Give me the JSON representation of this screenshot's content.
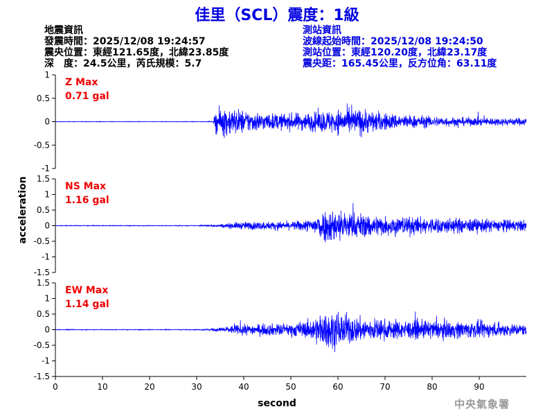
{
  "title": "佳里（SCL）震度：1級",
  "earthquake_info": {
    "heading": "地震資訊",
    "origin_time": "發震時間：2025/12/08 19:24:57",
    "epicenter": "震央位置：東經121.65度，北緯23.85度",
    "depth_magnitude": "深　度：24.5公里，芮氏規模：5.7"
  },
  "station_info": {
    "heading": "測站資訊",
    "wave_start": "波線起始時間：2025/12/08 19:24:50",
    "station_location": "測站位置：東經120.20度，北緯23.17度",
    "distance_azimuth": "震央距：165.45公里，反方位角：63.11度"
  },
  "agency": "中央氣象署",
  "colors": {
    "title": "#0000e0",
    "trace": "#0000ff",
    "peak_label": "#ee0000",
    "station_text": "#0000e0",
    "agency": "#999999"
  },
  "chart_data": {
    "type": "line",
    "xlabel": "second",
    "ylabel": "acceleration",
    "xlim": [
      0,
      100
    ],
    "xticks": [
      0,
      10,
      20,
      30,
      40,
      50,
      60,
      70,
      80,
      90
    ],
    "panels": [
      {
        "component": "Z",
        "max_label": "Z Max",
        "max_value": "0.71 gal",
        "ylim": [
          -1,
          1
        ],
        "yticks": [
          1,
          0.5,
          0,
          -0.5,
          -1
        ],
        "trace_envelope": {
          "t": [
            0,
            33.5,
            34,
            36,
            40,
            45,
            50,
            55,
            60,
            65,
            70,
            75,
            80,
            85,
            90,
            95,
            100
          ],
          "amplitude": [
            0.01,
            0.01,
            0.38,
            0.55,
            0.42,
            0.3,
            0.3,
            0.35,
            0.45,
            0.48,
            0.32,
            0.25,
            0.2,
            0.16,
            0.15,
            0.14,
            0.14
          ]
        }
      },
      {
        "component": "NS",
        "max_label": "NS Max",
        "max_value": "1.16 gal",
        "ylim": [
          -1.5,
          1.5
        ],
        "yticks": [
          1.5,
          1,
          0.5,
          0,
          -0.5,
          -1,
          -1.5
        ],
        "trace_envelope": {
          "t": [
            0,
            30,
            34,
            38,
            42,
            50,
            54,
            56,
            58,
            60,
            64,
            70,
            75,
            80,
            90,
            100
          ],
          "amplitude": [
            0.02,
            0.02,
            0.06,
            0.18,
            0.22,
            0.22,
            0.35,
            0.75,
            0.95,
            0.9,
            0.7,
            0.55,
            0.5,
            0.45,
            0.38,
            0.3
          ]
        }
      },
      {
        "component": "EW",
        "max_label": "EW Max",
        "max_value": "1.14 gal",
        "ylim": [
          -1.5,
          1.5
        ],
        "yticks": [
          1.5,
          1,
          0.5,
          0,
          -0.5,
          -1,
          -1.5
        ],
        "trace_envelope": {
          "t": [
            0,
            30,
            34,
            38,
            42,
            50,
            54,
            56,
            58,
            60,
            64,
            70,
            75,
            80,
            90,
            100
          ],
          "amplitude": [
            0.02,
            0.02,
            0.08,
            0.25,
            0.3,
            0.35,
            0.5,
            0.85,
            1.0,
            0.95,
            0.7,
            0.55,
            0.5,
            0.5,
            0.45,
            0.3
          ]
        }
      }
    ]
  }
}
